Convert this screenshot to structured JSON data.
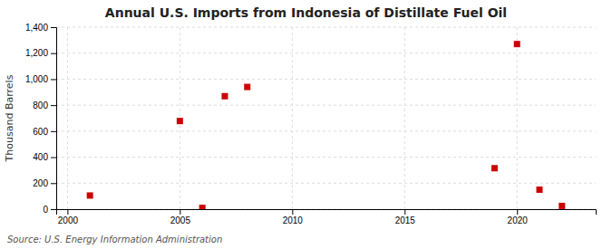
{
  "chart_data": {
    "type": "scatter",
    "title": "Annual U.S. Imports from Indonesia of Distillate Fuel Oil",
    "ylabel": "Thousand Barrels",
    "source": "Source: U.S. Energy Information Administration",
    "x": [
      2001,
      2005,
      2006,
      2007,
      2008,
      2019,
      2020,
      2021,
      2022
    ],
    "values": [
      105,
      678,
      10,
      869,
      940,
      315,
      1270,
      150,
      25
    ],
    "color": "#cc0000",
    "marker": "square",
    "xlim": [
      1999.5,
      2023.5
    ],
    "ylim": [
      0,
      1400
    ],
    "xticks": [
      2000,
      2005,
      2010,
      2015,
      2020
    ],
    "yticks": [
      0,
      200,
      400,
      600,
      800,
      {
        "value": 1000,
        "label": "1,000"
      },
      {
        "value": 1200,
        "label": "1,200"
      },
      {
        "value": 1400,
        "label": "1,400"
      }
    ],
    "grid": true
  }
}
